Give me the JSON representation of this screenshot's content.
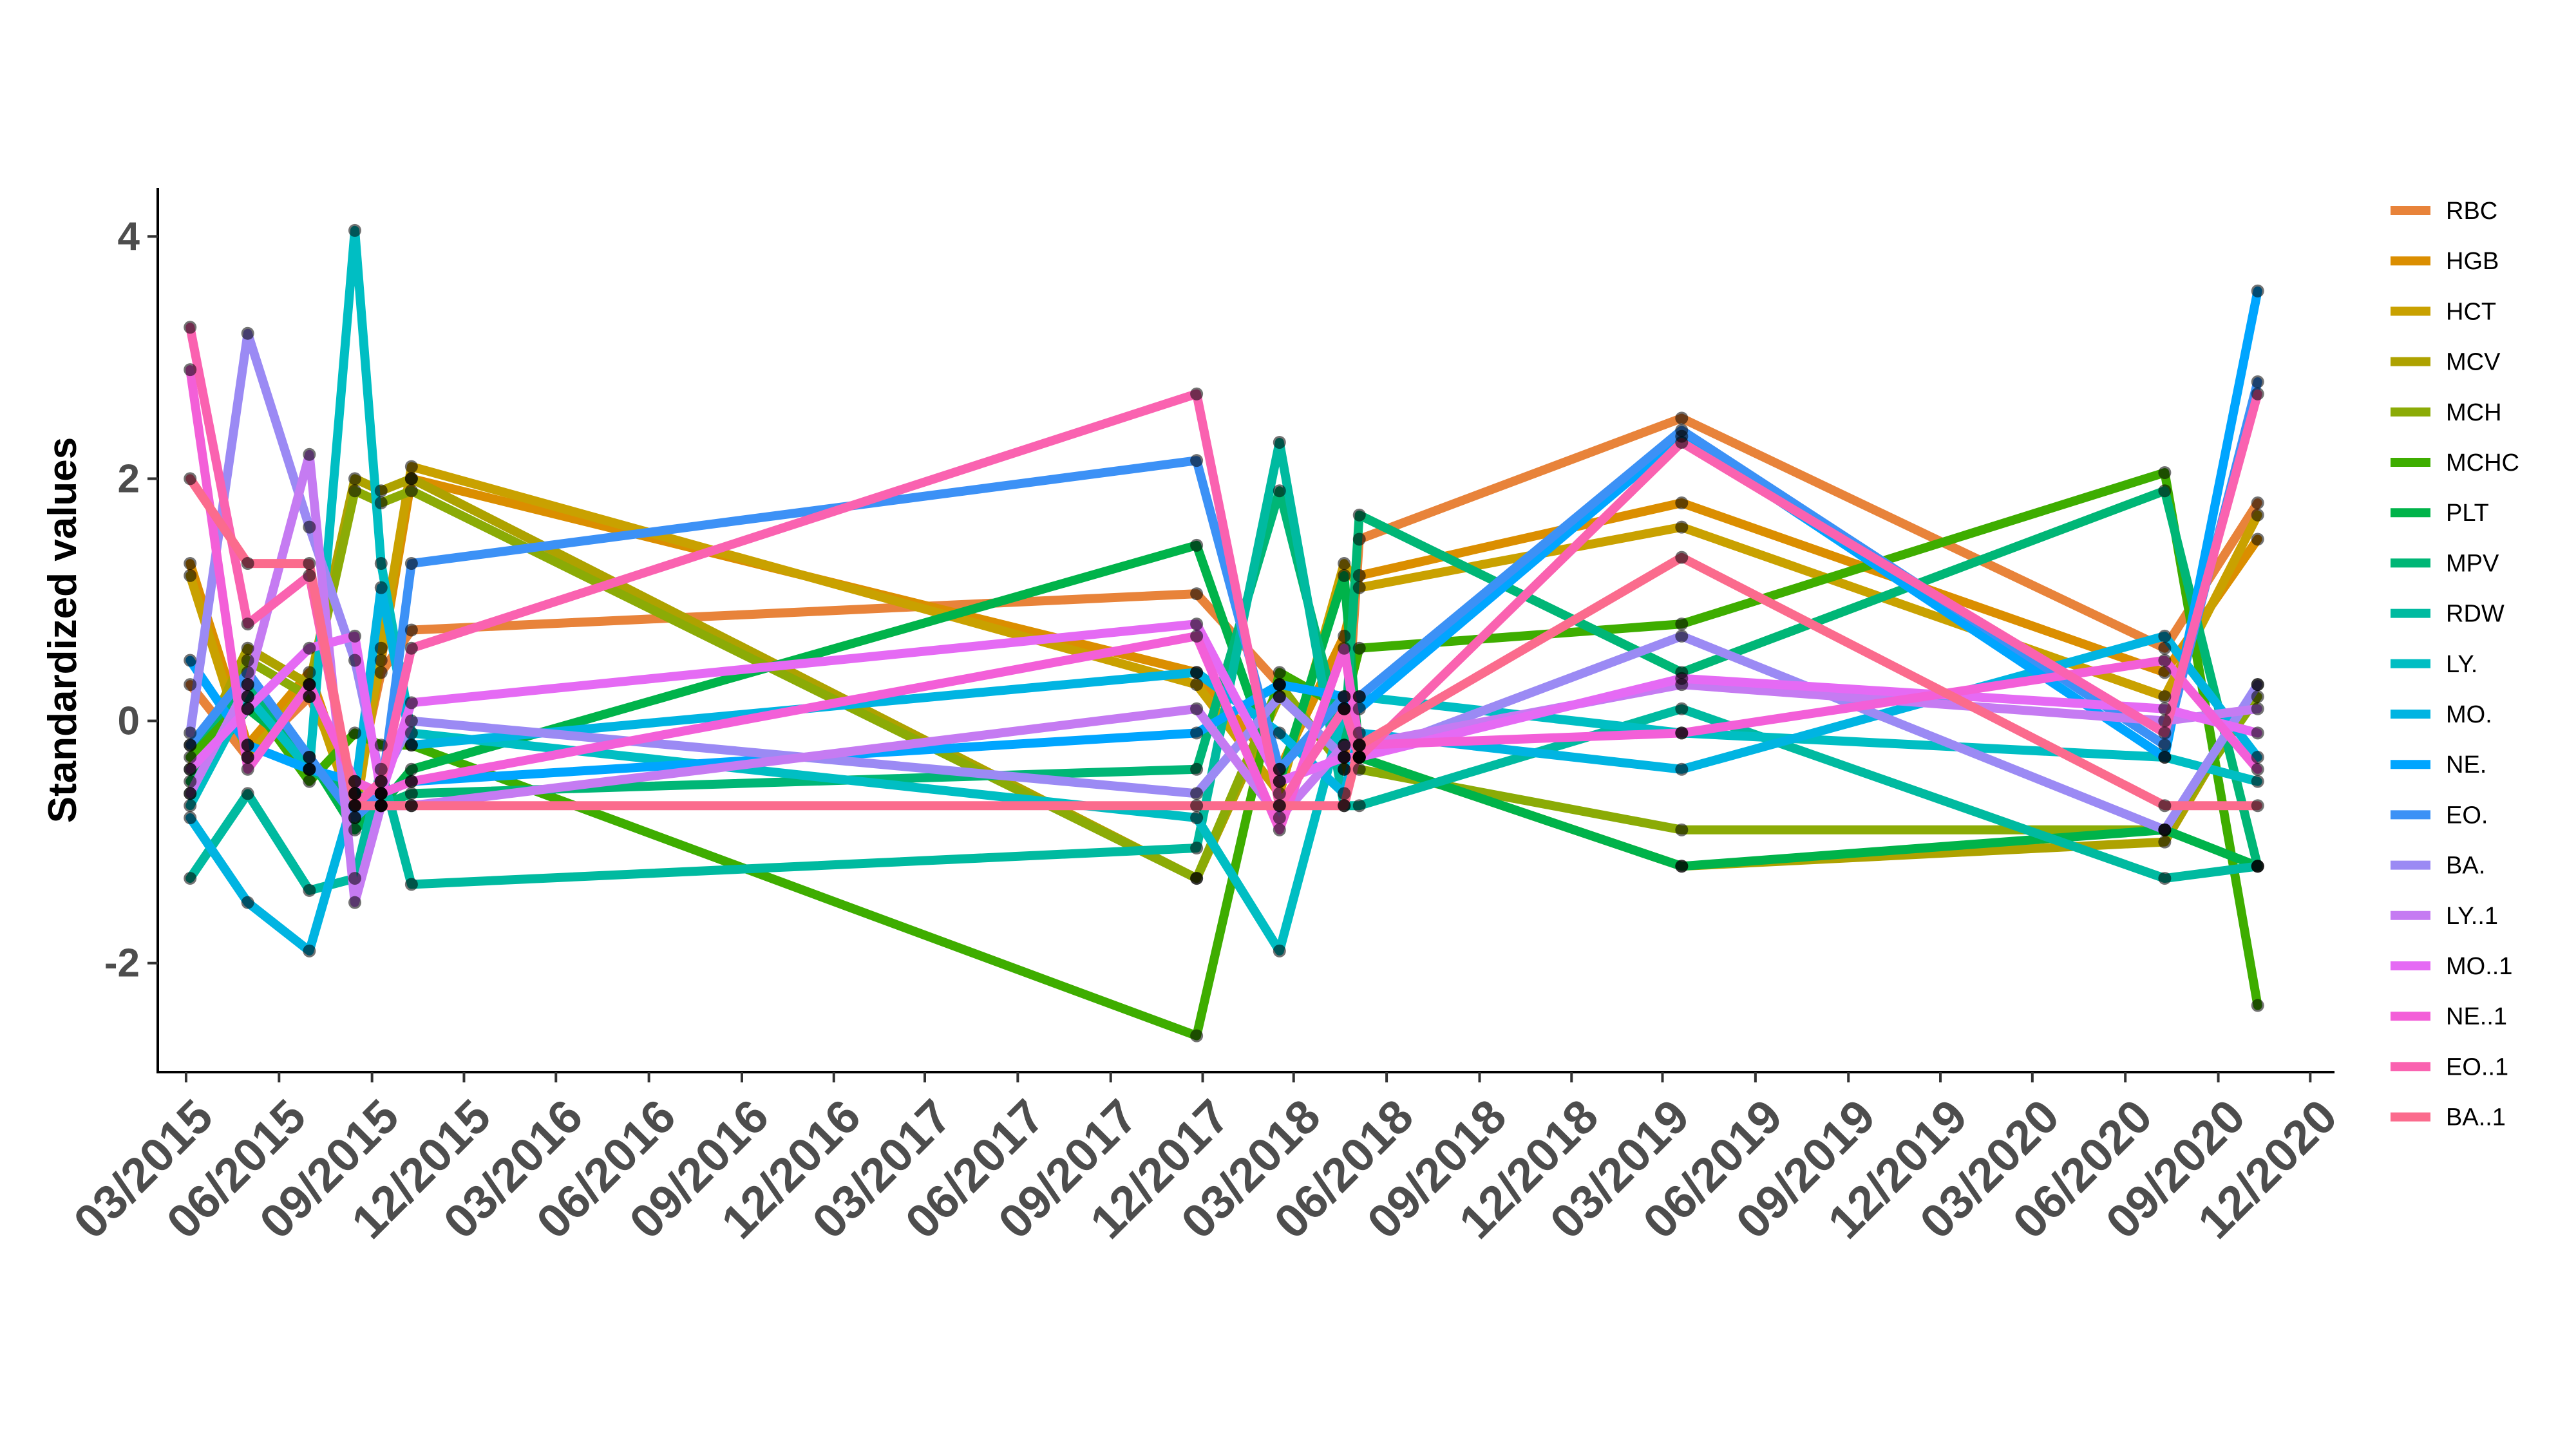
{
  "chart_data": {
    "type": "line",
    "title": "",
    "xlabel": "",
    "ylabel": "Standardized values",
    "ylim": [
      -2.9,
      4.4
    ],
    "yticks": [
      -2,
      0,
      2,
      4
    ],
    "ytick_labels": [
      "-2",
      "0",
      "2",
      "4"
    ],
    "xlim": [
      "2015-02-01",
      "2020-12-25"
    ],
    "xticks": [
      "2015-03-01",
      "2015-06-01",
      "2015-09-01",
      "2015-12-01",
      "2016-03-01",
      "2016-06-01",
      "2016-09-01",
      "2016-12-01",
      "2017-03-01",
      "2017-06-01",
      "2017-09-01",
      "2017-12-01",
      "2018-03-01",
      "2018-06-01",
      "2018-09-01",
      "2018-12-01",
      "2019-03-01",
      "2019-06-01",
      "2019-09-01",
      "2019-12-01",
      "2020-03-01",
      "2020-06-01",
      "2020-09-01",
      "2020-12-01"
    ],
    "xtick_labels": [
      "03/2015",
      "06/2015",
      "09/2015",
      "12/2015",
      "03/2016",
      "06/2016",
      "09/2016",
      "12/2016",
      "03/2017",
      "06/2017",
      "09/2017",
      "12/2017",
      "03/2018",
      "06/2018",
      "09/2018",
      "12/2018",
      "03/2019",
      "06/2019",
      "09/2019",
      "12/2019",
      "03/2020",
      "06/2020",
      "09/2020",
      "12/2020"
    ],
    "grid": false,
    "points_shown": true,
    "legend_position": "right",
    "series": [
      {
        "name": "RBC",
        "color": "#E8833A",
        "x": [
          "2015-03-05",
          "2015-05-01",
          "2015-07-01",
          "2015-08-15",
          "2015-09-10",
          "2015-10-10",
          "2017-11-25",
          "2018-02-15",
          "2018-04-20",
          "2018-05-05",
          "2019-03-20",
          "2020-07-10",
          "2020-10-10"
        ],
        "y": [
          0.3,
          -0.3,
          0.2,
          -0.6,
          0.4,
          0.75,
          1.05,
          0.3,
          -0.4,
          1.5,
          2.5,
          0.6,
          1.8
        ]
      },
      {
        "name": "HGB",
        "color": "#DB8E00",
        "x": [
          "2015-03-05",
          "2015-05-01",
          "2015-07-01",
          "2015-08-15",
          "2015-09-10",
          "2015-10-10",
          "2017-11-25",
          "2018-02-15",
          "2018-04-20",
          "2018-05-05",
          "2019-03-20",
          "2020-07-10",
          "2020-10-10"
        ],
        "y": [
          1.3,
          -0.2,
          0.4,
          -0.7,
          0.5,
          2.0,
          0.4,
          -0.4,
          0.7,
          1.2,
          1.8,
          0.4,
          1.5
        ]
      },
      {
        "name": "HCT",
        "color": "#C9A100",
        "x": [
          "2015-03-05",
          "2015-05-01",
          "2015-07-01",
          "2015-08-15",
          "2015-09-10",
          "2015-10-10",
          "2017-11-25",
          "2018-02-15",
          "2018-04-20",
          "2018-05-05",
          "2019-03-20",
          "2020-07-10",
          "2020-10-10"
        ],
        "y": [
          1.2,
          -0.3,
          0.3,
          -0.8,
          0.6,
          2.1,
          0.3,
          -0.6,
          1.3,
          1.1,
          1.6,
          0.2,
          1.7
        ]
      },
      {
        "name": "MCV",
        "color": "#AEA200",
        "x": [
          "2015-03-05",
          "2015-05-01",
          "2015-07-01",
          "2015-08-15",
          "2015-09-10",
          "2015-10-10",
          "2017-11-25",
          "2018-02-15",
          "2018-04-20",
          "2018-05-05",
          "2019-03-20",
          "2020-07-10",
          "2020-10-10"
        ],
        "y": [
          -0.4,
          0.6,
          0.3,
          2.0,
          1.9,
          2.0,
          -1.3,
          0.2,
          -0.3,
          -0.3,
          -1.2,
          -1.0,
          0.3
        ]
      },
      {
        "name": "MCH",
        "color": "#8BAB06",
        "x": [
          "2015-03-05",
          "2015-05-01",
          "2015-07-01",
          "2015-08-15",
          "2015-09-10",
          "2015-10-10",
          "2017-11-25",
          "2018-02-15",
          "2018-04-20",
          "2018-05-05",
          "2019-03-20",
          "2020-07-10",
          "2020-10-10"
        ],
        "y": [
          -0.6,
          0.5,
          0.2,
          1.9,
          1.8,
          1.9,
          -1.3,
          0.3,
          -0.4,
          -0.4,
          -0.9,
          -0.9,
          0.2
        ]
      },
      {
        "name": "MCHC",
        "color": "#3EAD00",
        "x": [
          "2015-03-05",
          "2015-05-01",
          "2015-07-01",
          "2015-08-15",
          "2015-09-10",
          "2015-10-10",
          "2017-11-25",
          "2018-02-15",
          "2018-04-20",
          "2018-05-05",
          "2019-03-20",
          "2020-07-10",
          "2020-10-10"
        ],
        "y": [
          -0.3,
          0.2,
          -0.5,
          -0.1,
          -0.2,
          -0.2,
          -2.6,
          0.4,
          0.1,
          0.6,
          0.8,
          2.05,
          -2.35
        ]
      },
      {
        "name": "PLT",
        "color": "#00B34A",
        "x": [
          "2015-03-05",
          "2015-05-01",
          "2015-07-01",
          "2015-08-15",
          "2015-09-10",
          "2015-10-10",
          "2017-11-25",
          "2018-02-15",
          "2018-04-20",
          "2018-05-05",
          "2019-03-20",
          "2020-07-10",
          "2020-10-10"
        ],
        "y": [
          -0.5,
          0.1,
          -0.3,
          -0.9,
          -0.7,
          -0.4,
          1.45,
          -0.5,
          1.2,
          -0.3,
          -1.2,
          -0.9,
          -1.2
        ]
      },
      {
        "name": "MPV",
        "color": "#00B676",
        "x": [
          "2015-03-05",
          "2015-05-01",
          "2015-07-01",
          "2015-08-15",
          "2015-09-10",
          "2015-10-10",
          "2017-11-25",
          "2018-02-15",
          "2018-04-20",
          "2018-05-05",
          "2019-03-20",
          "2020-07-10",
          "2020-10-10"
        ],
        "y": [
          -0.2,
          0.3,
          -0.4,
          -0.6,
          -0.7,
          -0.6,
          -0.4,
          1.9,
          -0.2,
          1.7,
          0.4,
          1.9,
          -1.2
        ]
      },
      {
        "name": "RDW",
        "color": "#00BAA0",
        "x": [
          "2015-03-05",
          "2015-05-01",
          "2015-07-01",
          "2015-08-15",
          "2015-09-10",
          "2015-10-10",
          "2017-11-25",
          "2018-02-15",
          "2018-04-20",
          "2018-05-05",
          "2019-03-20",
          "2020-07-10",
          "2020-10-10"
        ],
        "y": [
          -1.3,
          -0.6,
          -1.4,
          -1.3,
          -0.4,
          -1.35,
          -1.05,
          2.3,
          -0.7,
          -0.7,
          0.1,
          -1.3,
          -1.2
        ]
      },
      {
        "name": "LY.",
        "color": "#00BEC3",
        "x": [
          "2015-03-05",
          "2015-05-01",
          "2015-07-01",
          "2015-08-15",
          "2015-09-10",
          "2015-10-10",
          "2017-11-25",
          "2018-02-15",
          "2018-04-20",
          "2018-05-05",
          "2019-03-20",
          "2020-07-10",
          "2020-10-10"
        ],
        "y": [
          -0.7,
          0.2,
          -0.4,
          4.05,
          1.3,
          -0.1,
          -0.8,
          -1.9,
          0.1,
          0.2,
          -0.1,
          -0.3,
          -0.5
        ]
      },
      {
        "name": "MO.",
        "color": "#00B4E2",
        "x": [
          "2015-03-05",
          "2015-05-01",
          "2015-07-01",
          "2015-08-15",
          "2015-09-10",
          "2015-10-10",
          "2017-11-25",
          "2018-02-15",
          "2018-04-20",
          "2018-05-05",
          "2019-03-20",
          "2020-07-10",
          "2020-10-10"
        ],
        "y": [
          -0.8,
          -1.5,
          -1.9,
          -0.6,
          1.1,
          -0.2,
          0.4,
          -0.1,
          -0.6,
          -0.1,
          -0.4,
          0.7,
          -0.3
        ]
      },
      {
        "name": "NE.",
        "color": "#00A5FF",
        "x": [
          "2015-03-05",
          "2015-05-01",
          "2015-07-01",
          "2015-08-15",
          "2015-09-10",
          "2015-10-10",
          "2017-11-25",
          "2018-02-15",
          "2018-04-20",
          "2018-05-05",
          "2019-03-20",
          "2020-07-10",
          "2020-10-10"
        ],
        "y": [
          0.5,
          -0.2,
          -0.4,
          -0.5,
          -0.6,
          -0.5,
          -0.1,
          0.3,
          0.2,
          0.1,
          2.35,
          -0.3,
          3.55
        ]
      },
      {
        "name": "EO.",
        "color": "#3C91F6",
        "x": [
          "2015-03-05",
          "2015-05-01",
          "2015-07-01",
          "2015-08-15",
          "2015-09-10",
          "2015-10-10",
          "2017-11-25",
          "2018-02-15",
          "2018-04-20",
          "2018-05-05",
          "2019-03-20",
          "2020-07-10",
          "2020-10-10"
        ],
        "y": [
          -0.2,
          0.4,
          -0.3,
          -0.8,
          -0.6,
          1.3,
          2.15,
          -0.4,
          0.2,
          0.2,
          2.4,
          -0.2,
          2.8
        ]
      },
      {
        "name": "BA.",
        "color": "#9B8AF4",
        "x": [
          "2015-03-05",
          "2015-05-01",
          "2015-07-01",
          "2015-08-15",
          "2015-09-10",
          "2015-10-10",
          "2017-11-25",
          "2018-02-15",
          "2018-04-20",
          "2018-05-05",
          "2019-03-20",
          "2020-07-10",
          "2020-10-10"
        ],
        "y": [
          -0.1,
          3.2,
          1.6,
          0.5,
          -0.5,
          0.0,
          -0.6,
          0.2,
          -0.3,
          -0.3,
          0.7,
          -0.9,
          0.3
        ]
      },
      {
        "name": "LY..1",
        "color": "#C57BF2",
        "x": [
          "2015-03-05",
          "2015-05-01",
          "2015-07-01",
          "2015-08-15",
          "2015-09-10",
          "2015-10-10",
          "2017-11-25",
          "2018-02-15",
          "2018-04-20",
          "2018-05-05",
          "2019-03-20",
          "2020-07-10",
          "2020-10-10"
        ],
        "y": [
          -0.6,
          0.3,
          2.2,
          -1.5,
          -0.7,
          -0.7,
          0.1,
          -0.8,
          -0.2,
          -0.2,
          0.3,
          0.0,
          0.1
        ]
      },
      {
        "name": "MO..1",
        "color": "#E56AF4",
        "x": [
          "2015-03-05",
          "2015-05-01",
          "2015-07-01",
          "2015-08-15",
          "2015-09-10",
          "2015-10-10",
          "2017-11-25",
          "2018-02-15",
          "2018-04-20",
          "2018-05-05",
          "2019-03-20",
          "2020-07-10",
          "2020-10-10"
        ],
        "y": [
          -0.4,
          0.1,
          0.6,
          0.7,
          -0.6,
          0.15,
          0.8,
          -0.5,
          -0.3,
          -0.3,
          0.35,
          0.1,
          -0.1
        ]
      },
      {
        "name": "NE..1",
        "color": "#F35FD8",
        "x": [
          "2015-03-05",
          "2015-05-01",
          "2015-07-01",
          "2015-08-15",
          "2015-09-10",
          "2015-10-10",
          "2017-11-25",
          "2018-02-15",
          "2018-04-20",
          "2018-05-05",
          "2019-03-20",
          "2020-07-10",
          "2020-10-10"
        ],
        "y": [
          2.9,
          -0.4,
          0.3,
          -0.5,
          -0.6,
          -0.5,
          0.7,
          -0.9,
          0.6,
          -0.2,
          -0.1,
          0.5,
          -0.4
        ]
      },
      {
        "name": "EO..1",
        "color": "#FA62B0",
        "x": [
          "2015-03-05",
          "2015-05-01",
          "2015-07-01",
          "2015-08-15",
          "2015-09-10",
          "2015-10-10",
          "2017-11-25",
          "2018-02-15",
          "2018-04-20",
          "2018-05-05",
          "2019-03-20",
          "2020-07-10",
          "2020-10-10"
        ],
        "y": [
          3.25,
          0.8,
          1.2,
          -0.7,
          -0.5,
          0.6,
          2.7,
          -0.7,
          0.1,
          -0.3,
          2.3,
          -0.1,
          2.7
        ]
      },
      {
        "name": "BA..1",
        "color": "#FB6B8D",
        "x": [
          "2015-03-05",
          "2015-05-01",
          "2015-07-01",
          "2015-08-15",
          "2015-09-10",
          "2015-10-10",
          "2017-11-25",
          "2018-02-15",
          "2018-04-20",
          "2018-05-05",
          "2019-03-20",
          "2020-07-10",
          "2020-10-10"
        ],
        "y": [
          2.0,
          1.3,
          1.3,
          -0.7,
          -0.7,
          -0.7,
          -0.7,
          -0.7,
          -0.7,
          -0.2,
          1.35,
          -0.7,
          -0.7
        ]
      }
    ]
  }
}
